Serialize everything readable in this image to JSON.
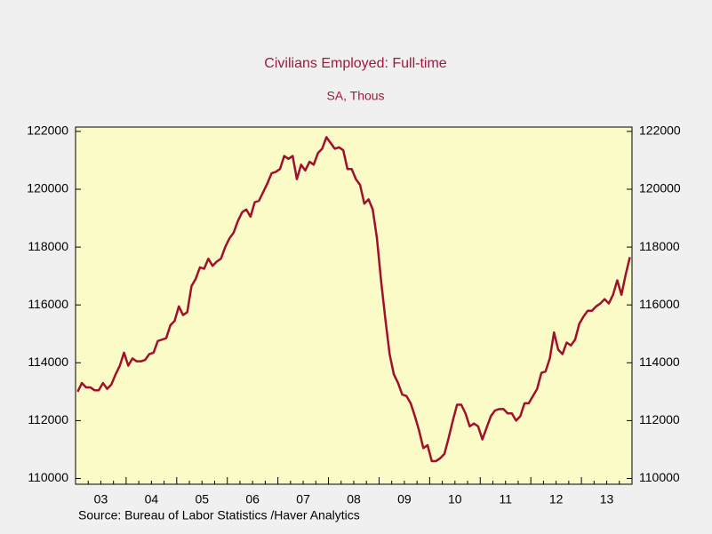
{
  "chart_data": {
    "type": "line",
    "title": "Civilians Employed: Full-time",
    "subtitle": "SA, Thous",
    "source": "Source:  Bureau of Labor Statistics /Haver Analytics",
    "categories": [
      null,
      null,
      null,
      null,
      null,
      null,
      "03",
      null,
      null,
      null,
      null,
      null,
      null,
      null,
      null,
      null,
      null,
      null,
      "04",
      null,
      null,
      null,
      null,
      null,
      null,
      null,
      null,
      null,
      null,
      null,
      "05",
      null,
      null,
      null,
      null,
      null,
      null,
      null,
      null,
      null,
      null,
      null,
      "06",
      null,
      null,
      null,
      null,
      null,
      null,
      null,
      null,
      null,
      null,
      null,
      "07",
      null,
      null,
      null,
      null,
      null,
      null,
      null,
      null,
      null,
      null,
      null,
      "08",
      null,
      null,
      null,
      null,
      null,
      null,
      null,
      null,
      null,
      null,
      null,
      "09",
      null,
      null,
      null,
      null,
      null,
      null,
      null,
      null,
      null,
      null,
      null,
      "10",
      null,
      null,
      null,
      null,
      null,
      null,
      null,
      null,
      null,
      null,
      null,
      "11",
      null,
      null,
      null,
      null,
      null,
      null,
      null,
      null,
      null,
      null,
      null,
      "12",
      null,
      null,
      null,
      null,
      null,
      null,
      null,
      null,
      null,
      null,
      null,
      "13",
      null,
      null,
      null,
      null,
      null
    ],
    "series": [
      {
        "color": "#a0102a",
        "values": [
          113000,
          113300,
          113150,
          113150,
          113050,
          113050,
          113300,
          113100,
          113250,
          113600,
          113900,
          114350,
          113900,
          114150,
          114050,
          114050,
          114100,
          114300,
          114350,
          114750,
          114800,
          114850,
          115300,
          115450,
          115950,
          115650,
          115750,
          116650,
          116900,
          117300,
          117250,
          117600,
          117350,
          117500,
          117600,
          118000,
          118300,
          118500,
          118900,
          119200,
          119300,
          119050,
          119550,
          119600,
          119900,
          120200,
          120550,
          120600,
          120700,
          121150,
          121050,
          121150,
          120350,
          120850,
          120650,
          120950,
          120850,
          121250,
          121400,
          121800,
          121600,
          121400,
          121450,
          121350,
          120700,
          120700,
          120350,
          120150,
          119500,
          119650,
          119300,
          118300,
          116800,
          115500,
          114300,
          113600,
          113300,
          112900,
          112850,
          112600,
          112150,
          111650,
          111050,
          111150,
          110600,
          110600,
          110700,
          110850,
          111400,
          112000,
          112550,
          112550,
          112250,
          111800,
          111900,
          111800,
          111350,
          111750,
          112150,
          112350,
          112400,
          112400,
          112250,
          112250,
          112000,
          112150,
          112600,
          112600,
          112850,
          113100,
          113650,
          113700,
          114150,
          115050,
          114450,
          114300,
          114700,
          114600,
          114800,
          115350,
          115600,
          115800,
          115800,
          115950,
          116050,
          116200,
          116050,
          116350,
          116850,
          116350,
          117050,
          117650
        ]
      }
    ],
    "ylim": [
      109800,
      122150
    ],
    "yticks": [
      110000,
      112000,
      114000,
      116000,
      118000,
      120000,
      122000
    ],
    "plot_color": "#fbfbc8"
  }
}
